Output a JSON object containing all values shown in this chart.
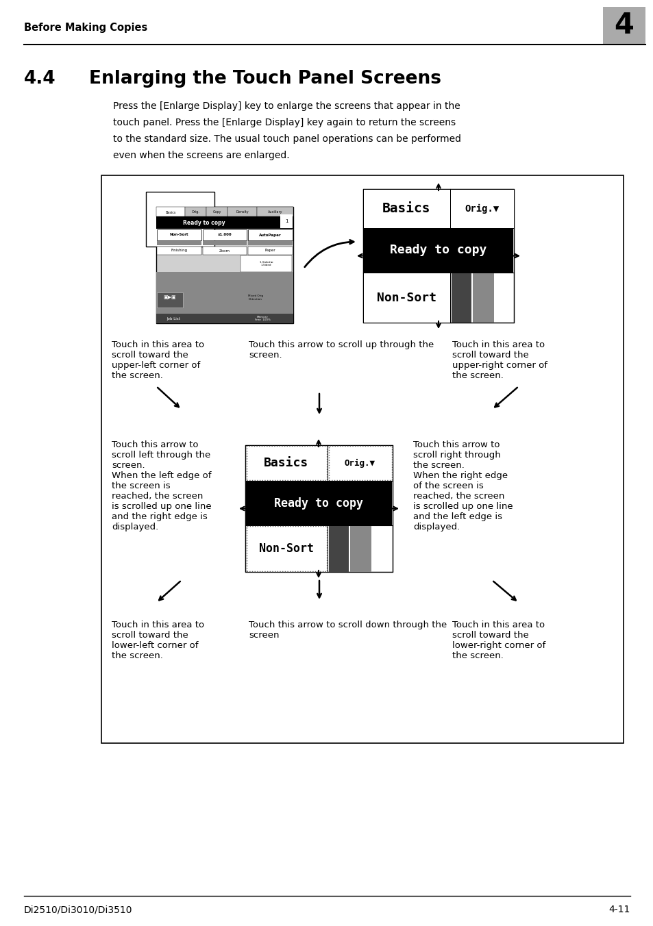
{
  "page_bg": "#ffffff",
  "header_text": "Before Making Copies",
  "header_chapter": "4",
  "header_chapter_bg": "#aaaaaa",
  "title_num": "4.4",
  "title_text": "Enlarging the Touch Panel Screens",
  "body_lines": [
    "Press the [Enlarge Display] key to enlarge the screens that appear in the",
    "touch panel. Press the [Enlarge Display] key again to return the screens",
    "to the standard size. The usual touch panel operations can be performed",
    "even when the screens are enlarged."
  ],
  "footer_left": "Di2510/Di3010/Di3510",
  "footer_right": "4-11",
  "cap_tl": "Touch in this area to\nscroll toward the\nupper-left corner of\nthe screen.",
  "cap_tm": "Touch this arrow to scroll up through the\nscreen.",
  "cap_tr": "Touch in this area to\nscroll toward the\nupper-right corner of\nthe screen.",
  "cap_ml": "Touch this arrow to\nscroll left through the\nscreen.\nWhen the left edge of\nthe screen is\nreached, the screen\nis scrolled up one line\nand the right edge is\ndisplayed.",
  "cap_mr": "Touch this arrow to\nscroll right through\nthe screen.\nWhen the right edge\nof the screen is\nreached, the screen\nis scrolled up one line\nand the left edge is\ndisplayed.",
  "cap_bl": "Touch in this area to\nscroll toward the\nlower-left corner of\nthe screen.",
  "cap_bm": "Touch this arrow to scroll down through the\nscreen",
  "cap_br": "Touch in this area to\nscroll toward the\nlower-right corner of\nthe screen."
}
